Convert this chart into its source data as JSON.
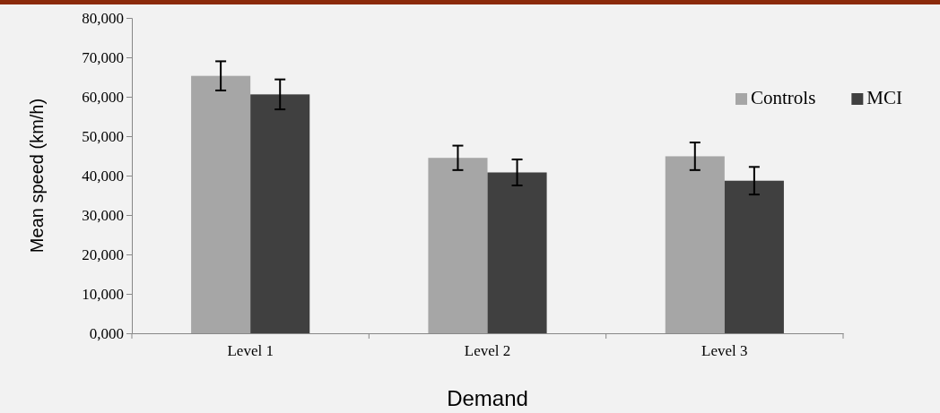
{
  "chart_data": {
    "type": "bar",
    "xlabel": "Demand",
    "ylabel": "Mean speed (km/h)",
    "categories": [
      "Level 1",
      "Level 2",
      "Level 3"
    ],
    "series": [
      {
        "name": "Controls",
        "color": "#a6a6a6",
        "values": [
          65300,
          44500,
          44900
        ],
        "errors": [
          3700,
          3100,
          3500
        ]
      },
      {
        "name": "MCI",
        "color": "#404040",
        "values": [
          60600,
          40800,
          38700
        ],
        "errors": [
          3800,
          3300,
          3500
        ]
      }
    ],
    "ylim": [
      0,
      80000
    ],
    "yticks": [
      {
        "value": 0,
        "label": "0,000"
      },
      {
        "value": 10000,
        "label": "10,000"
      },
      {
        "value": 20000,
        "label": "20,000"
      },
      {
        "value": 30000,
        "label": "30,000"
      },
      {
        "value": 40000,
        "label": "40,000"
      },
      {
        "value": 50000,
        "label": "50,000"
      },
      {
        "value": 60000,
        "label": "60,000"
      },
      {
        "value": 70000,
        "label": "70,000"
      },
      {
        "value": 80000,
        "label": "80,000"
      }
    ],
    "grid": false,
    "legend": "right"
  }
}
